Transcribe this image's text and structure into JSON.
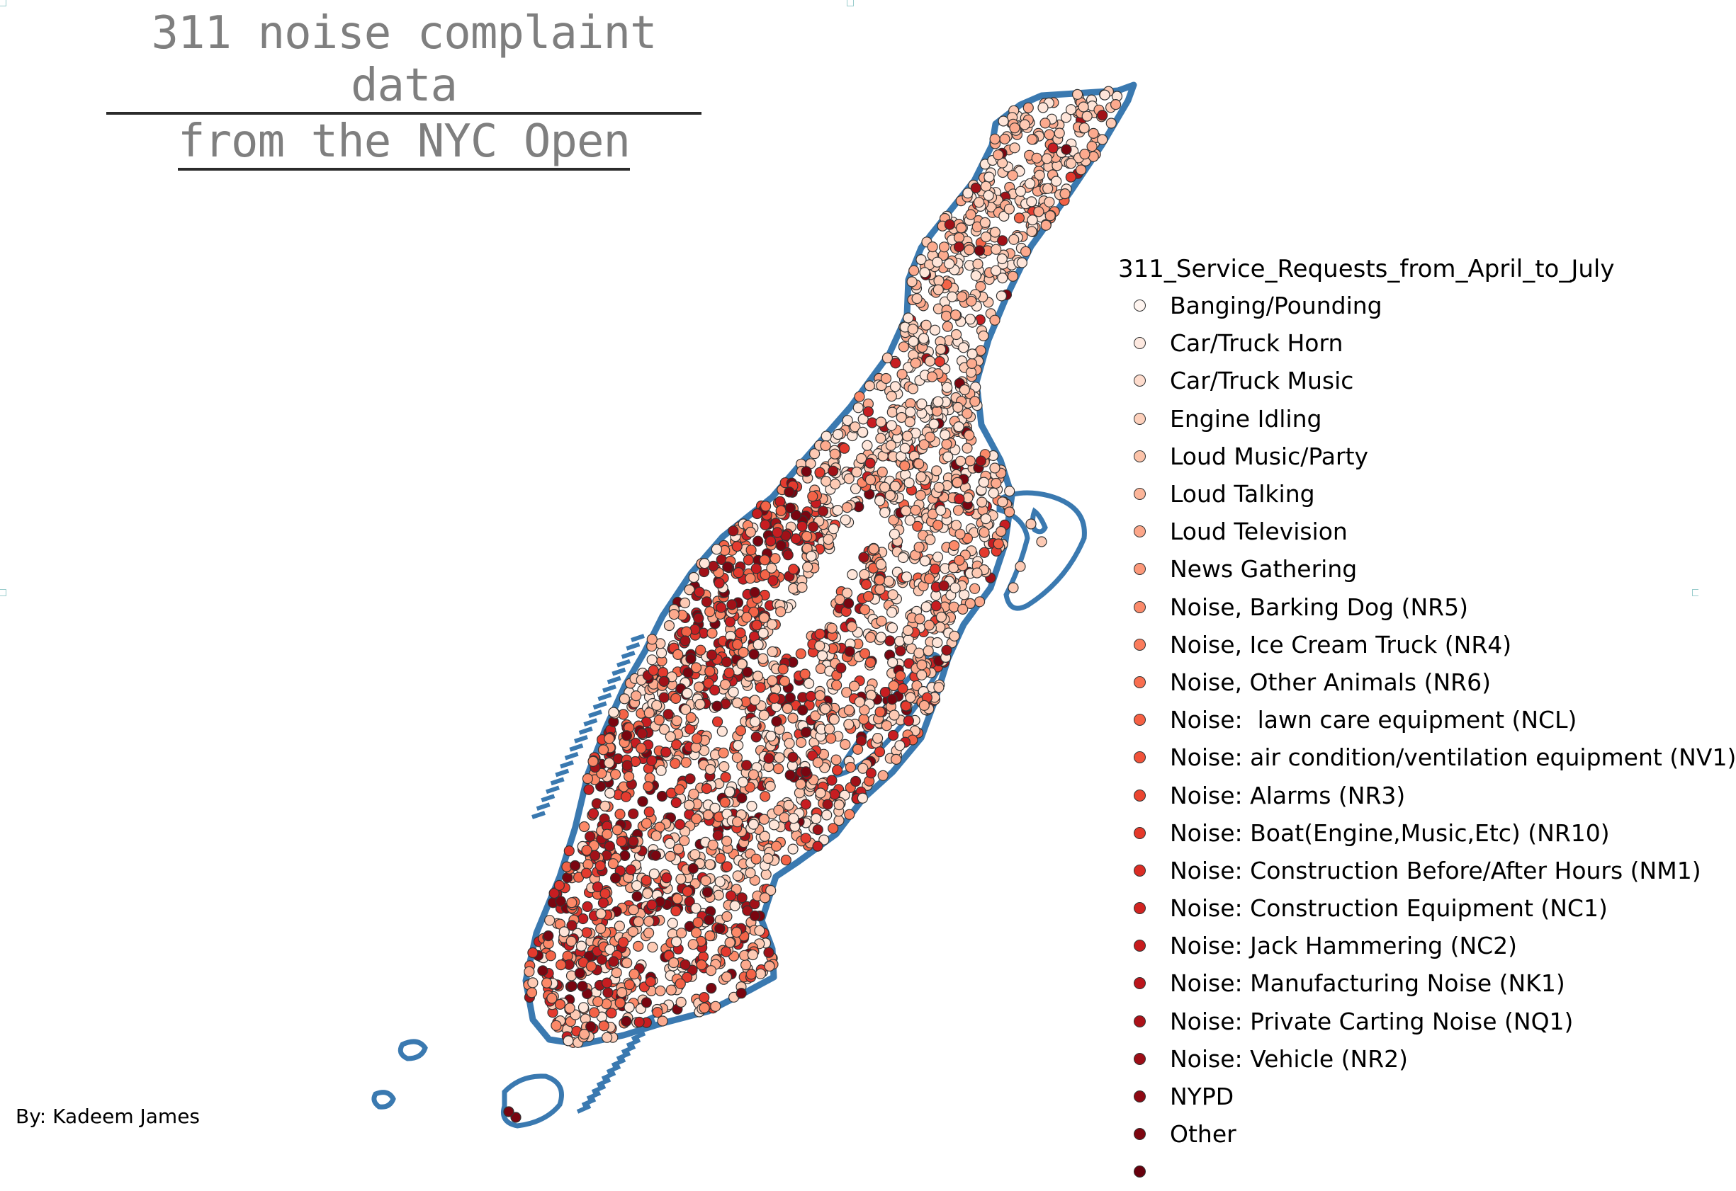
{
  "title": {
    "line1": "311 noise complaint data",
    "line2": "from the NYC Open"
  },
  "author": "By: Kadeem James",
  "colors": {
    "outline": "#3a79b0",
    "point_stroke": "#333333",
    "ramp": [
      "#fee5d9",
      "#fdcab4",
      "#fcaa8e",
      "#fc8968",
      "#f36347",
      "#e43a2e",
      "#c71d21",
      "#a11118",
      "#7a0510"
    ]
  },
  "legend": {
    "title": "311_Service_Requests_from_April_to_July",
    "items": [
      {
        "label": "Banging/Pounding",
        "color": "#fff5f0"
      },
      {
        "label": "Car/Truck Horn",
        "color": "#fee9e0"
      },
      {
        "label": "Car/Truck Music",
        "color": "#fedccd"
      },
      {
        "label": "Engine Idling",
        "color": "#fdd0bb"
      },
      {
        "label": "Loud Music/Party",
        "color": "#fcc3a9"
      },
      {
        "label": "Loud Talking",
        "color": "#fcb599"
      },
      {
        "label": "Loud Television",
        "color": "#fca689"
      },
      {
        "label": "News Gathering",
        "color": "#fc9879"
      },
      {
        "label": "Noise, Barking Dog (NR5)",
        "color": "#fb8a6a"
      },
      {
        "label": "Noise, Ice Cream Truck (NR4)",
        "color": "#fb7c5c"
      },
      {
        "label": "Noise, Other Animals (NR6)",
        "color": "#f96e4f"
      },
      {
        "label": "Noise:  lawn care equipment (NCL)",
        "color": "#f66043"
      },
      {
        "label": "Noise: air condition/ventilation equipment (NV1)",
        "color": "#f15239"
      },
      {
        "label": "Noise: Alarms (NR3)",
        "color": "#eb4530"
      },
      {
        "label": "Noise: Boat(Engine,Music,Etc) (NR10)",
        "color": "#e43829"
      },
      {
        "label": "Noise: Construction Before/After Hours (NM1)",
        "color": "#db2c24"
      },
      {
        "label": "Noise: Construction Equipment (NC1)",
        "color": "#d12320"
      },
      {
        "label": "Noise: Jack Hammering (NC2)",
        "color": "#c71b1d"
      },
      {
        "label": "Noise: Manufacturing Noise (NK1)",
        "color": "#bb151b"
      },
      {
        "label": "Noise: Private Carting Noise (NQ1)",
        "color": "#ac1118"
      },
      {
        "label": "Noise: Vehicle (NR2)",
        "color": "#9d0d16"
      },
      {
        "label": "NYPD",
        "color": "#8e0913"
      },
      {
        "label": "Other",
        "color": "#7d0610"
      },
      {
        "label": "",
        "color": "#67000d"
      }
    ]
  }
}
